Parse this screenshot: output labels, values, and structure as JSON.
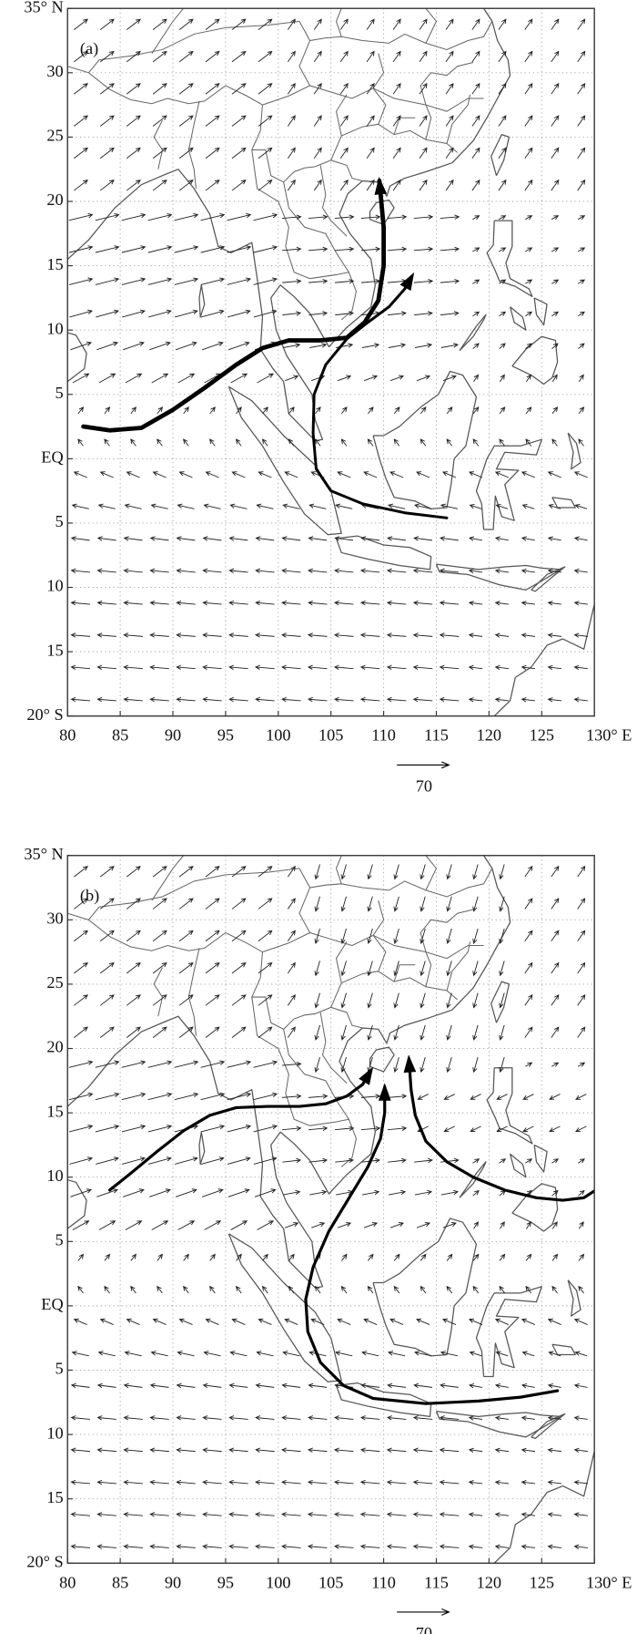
{
  "panels": [
    {
      "label": "(a)",
      "xticks": [
        "80",
        "85",
        "90",
        "95",
        "100",
        "105",
        "110",
        "115",
        "120",
        "125",
        "130° E"
      ],
      "yticks": [
        "35° N",
        "30",
        "25",
        "20",
        "15",
        "10",
        "5",
        "EQ",
        "5",
        "10",
        "15",
        "20° S"
      ],
      "reference_vector": "70"
    },
    {
      "label": "(b)",
      "xticks": [
        "80",
        "85",
        "90",
        "95",
        "100",
        "105",
        "110",
        "115",
        "120",
        "125",
        "130° E"
      ],
      "yticks": [
        "35° N",
        "30",
        "25",
        "20",
        "15",
        "10",
        "5",
        "EQ",
        "5",
        "10",
        "15",
        "20° S"
      ],
      "reference_vector": "70"
    }
  ]
}
